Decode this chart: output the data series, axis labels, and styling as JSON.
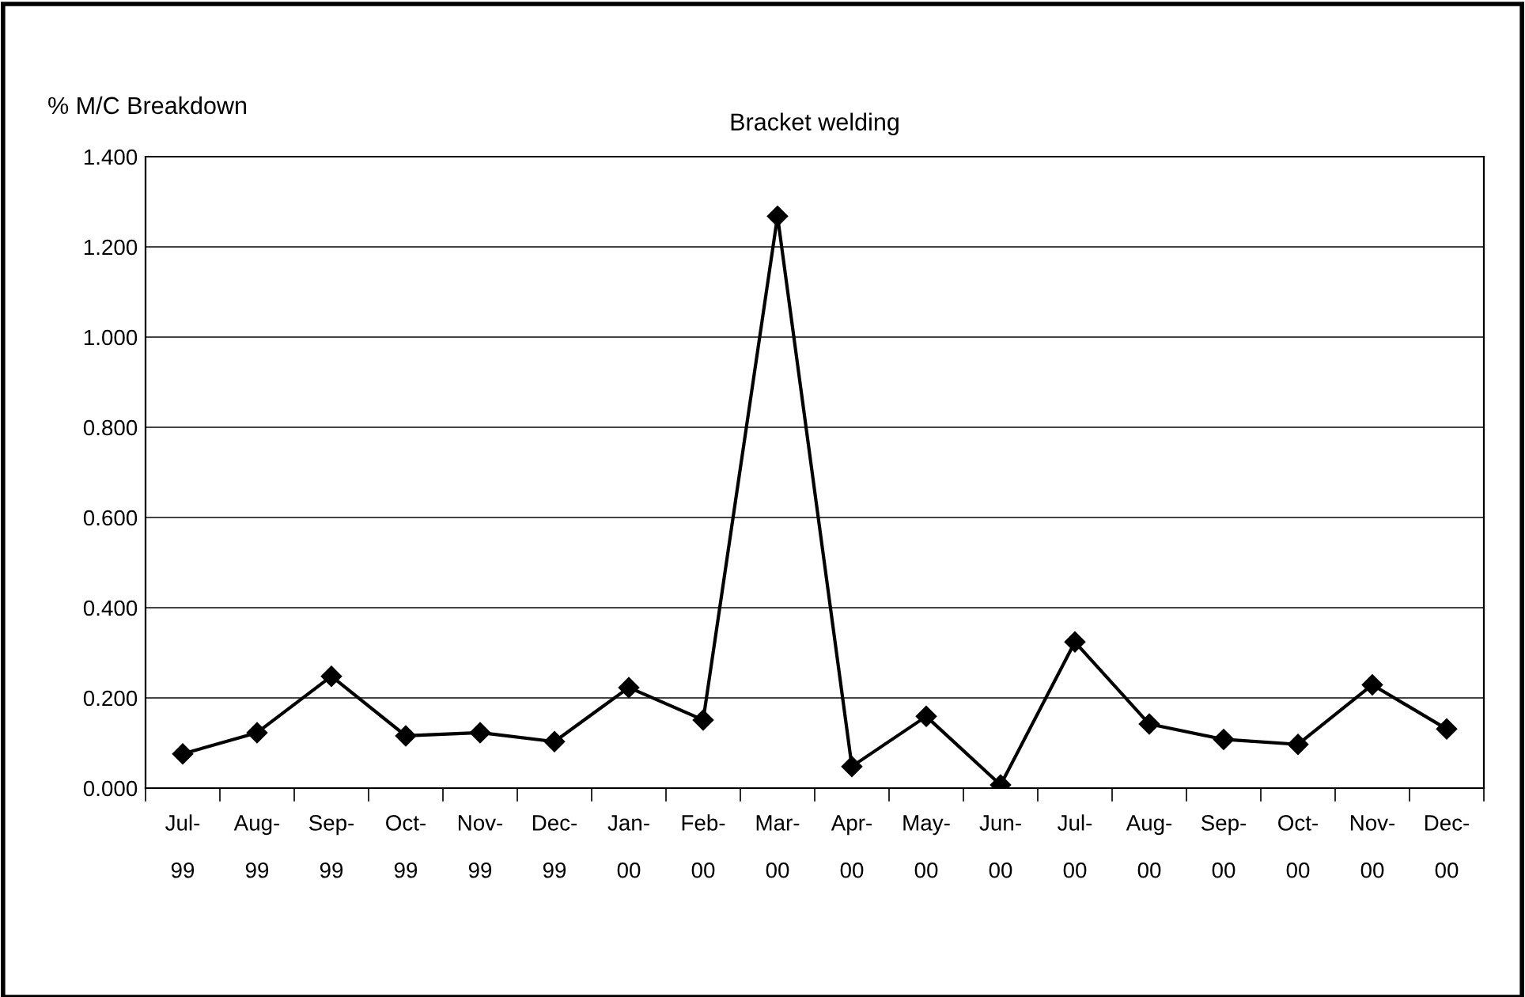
{
  "chart_data": {
    "type": "line",
    "title": "Bracket welding",
    "ylabel": "% M/C Breakdown",
    "categories": [
      "Jul-\n\n99",
      "Aug-\n\n99",
      "Sep-\n\n99",
      "Oct-\n\n99",
      "Nov-\n\n99",
      "Dec-\n\n99",
      "Jan-\n\n00",
      "Feb-\n\n00",
      "Mar-\n\n00",
      "Apr-\n\n00",
      "May-\n\n00",
      "Jun-\n\n00",
      "Jul-\n\n00",
      "Aug-\n\n00",
      "Sep-\n\n00",
      "Oct-\n\n00",
      "Nov-\n\n00",
      "Dec-\n\n00"
    ],
    "series": [
      {
        "color": "#000000",
        "values": [
          0.076,
          0.123,
          0.248,
          0.116,
          0.123,
          0.103,
          0.223,
          0.151,
          1.268,
          0.048,
          0.159,
          0.007,
          0.324,
          0.142,
          0.108,
          0.097,
          0.229,
          0.131
        ]
      }
    ],
    "ylim": [
      0,
      1.4
    ],
    "yticks": [
      {
        "value": 0,
        "label": "0.000"
      },
      {
        "value": 0.2,
        "label": "0.200"
      },
      {
        "value": 0.4,
        "label": "0.400"
      },
      {
        "value": 0.6,
        "label": "0.600"
      },
      {
        "value": 0.8,
        "label": "0.800"
      },
      {
        "value": 1.0,
        "label": "1.000"
      },
      {
        "value": 1.2,
        "label": "1.200"
      },
      {
        "value": 1.4,
        "label": "1.400"
      }
    ],
    "grid": "y",
    "marker": "diamond",
    "line_style": "solid",
    "legend": false
  }
}
